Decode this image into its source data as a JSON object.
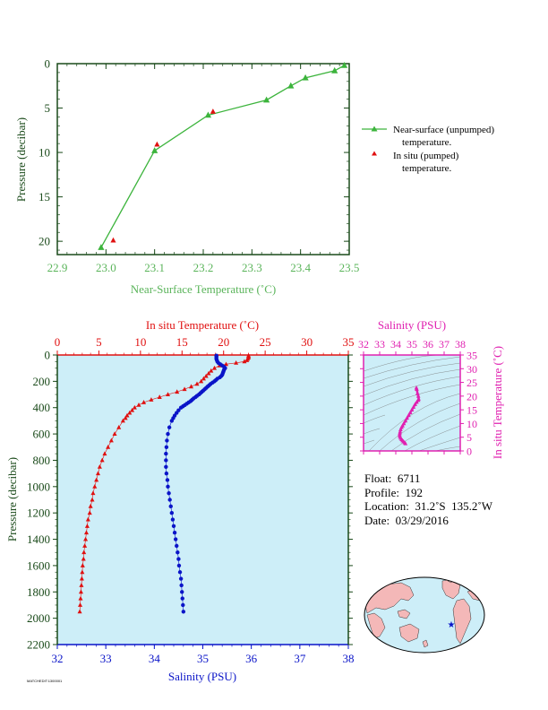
{
  "colors": {
    "green": "#3cb43c",
    "green_text": "#5ab45a",
    "red": "#e01010",
    "blue": "#0a14c8",
    "magenta": "#e020b0",
    "axis_dark": "#1a4a1a",
    "panel_bg": "#cdeef8",
    "land": "#f4b8b8"
  },
  "info": {
    "float": "Float:  6711",
    "profile": "Profile:  192",
    "location": "Location:  31.2˚S  135.2˚W",
    "date": "Date:  03/29/2016"
  },
  "footer": "MATCHEDIT:1300001",
  "chart_data": [
    {
      "type": "line",
      "xlabel": "Near-Surface Temperature (˚C)",
      "ylabel": "Pressure (decibar)",
      "xlim": [
        22.9,
        23.5
      ],
      "ylim": [
        0,
        21.5
      ],
      "xticks": [
        "22.9",
        "23.0",
        "23.1",
        "23.2",
        "23.3",
        "23.4",
        "23.5"
      ],
      "yticks": [
        "0",
        "5",
        "10",
        "15",
        "20"
      ],
      "legend_placement": "right",
      "series": [
        {
          "name": "Near-surface (unpumped) temperature.",
          "legend_lines": [
            "Near-surface (unpumped)",
            "temperature."
          ],
          "x": [
            23.49,
            23.47,
            23.41,
            23.38,
            23.33,
            23.21,
            23.1,
            22.99
          ],
          "y": [
            0.2,
            0.8,
            1.6,
            2.5,
            4.1,
            5.8,
            9.8,
            20.7
          ]
        },
        {
          "name": "In situ (pumped) temperature.",
          "legend_lines": [
            "In situ (pumped)",
            "temperature."
          ],
          "x": [
            23.22,
            23.105,
            23.015
          ],
          "y": [
            5.4,
            9.1,
            19.9
          ]
        }
      ]
    },
    {
      "type": "scatter",
      "x_bottom_label": "Salinity (PSU)",
      "x_top_label": "In situ Temperature (˚C)",
      "ylabel": "Pressure (decibar)",
      "salinity_lim": [
        32,
        38
      ],
      "temperature_lim": [
        0,
        35
      ],
      "ylim": [
        0,
        2200
      ],
      "salinity_ticks": [
        "32",
        "33",
        "34",
        "35",
        "36",
        "37",
        "38"
      ],
      "temperature_ticks": [
        "0",
        "5",
        "10",
        "15",
        "20",
        "25",
        "30",
        "35"
      ],
      "pressure_ticks": [
        "0",
        "200",
        "400",
        "600",
        "800",
        "1000",
        "1200",
        "1400",
        "1600",
        "1800",
        "2000",
        "2200"
      ],
      "series": [
        {
          "name": "In situ Temperature (˚C)",
          "p": [
            5,
            10,
            20,
            30,
            40,
            50,
            60,
            70,
            80,
            100,
            120,
            140,
            160,
            180,
            200,
            220,
            240,
            260,
            280,
            300,
            320,
            340,
            360,
            380,
            400,
            420,
            440,
            460,
            480,
            500,
            550,
            600,
            650,
            700,
            750,
            800,
            850,
            900,
            950,
            1000,
            1050,
            1100,
            1150,
            1200,
            1250,
            1300,
            1350,
            1400,
            1450,
            1500,
            1550,
            1600,
            1650,
            1700,
            1750,
            1800,
            1850,
            1900,
            1950
          ],
          "t": [
            23.0,
            23.0,
            23.0,
            22.9,
            22.8,
            22.5,
            21.5,
            20.3,
            19.5,
            18.9,
            18.5,
            18.2,
            17.9,
            17.6,
            17.3,
            16.8,
            16.1,
            15.3,
            14.4,
            13.3,
            12.3,
            11.3,
            10.4,
            9.8,
            9.3,
            9.0,
            8.7,
            8.4,
            8.2,
            7.9,
            7.4,
            6.9,
            6.5,
            6.1,
            5.7,
            5.4,
            5.1,
            4.9,
            4.7,
            4.5,
            4.3,
            4.2,
            4.0,
            3.9,
            3.7,
            3.6,
            3.5,
            3.4,
            3.3,
            3.2,
            3.15,
            3.05,
            3.0,
            2.95,
            2.9,
            2.85,
            2.8,
            2.75,
            2.7
          ]
        },
        {
          "name": "Salinity (PSU)",
          "p": [
            5,
            10,
            20,
            30,
            40,
            50,
            60,
            70,
            80,
            90,
            100,
            110,
            120,
            130,
            140,
            150,
            160,
            170,
            180,
            190,
            200,
            210,
            220,
            230,
            240,
            250,
            260,
            270,
            280,
            290,
            300,
            310,
            320,
            330,
            340,
            350,
            360,
            370,
            380,
            390,
            400,
            420,
            440,
            460,
            480,
            500,
            550,
            600,
            650,
            700,
            750,
            800,
            850,
            900,
            950,
            1000,
            1050,
            1100,
            1150,
            1200,
            1250,
            1300,
            1350,
            1400,
            1450,
            1500,
            1550,
            1600,
            1650,
            1700,
            1750,
            1800,
            1850,
            1900,
            1950
          ],
          "s": [
            35.28,
            35.28,
            35.28,
            35.28,
            35.29,
            35.3,
            35.32,
            35.36,
            35.4,
            35.44,
            35.46,
            35.44,
            35.43,
            35.42,
            35.41,
            35.4,
            35.38,
            35.35,
            35.3,
            35.27,
            35.24,
            35.2,
            35.16,
            35.13,
            35.1,
            35.07,
            35.04,
            35.01,
            34.98,
            34.95,
            34.92,
            34.88,
            34.85,
            34.81,
            34.78,
            34.75,
            34.71,
            34.67,
            34.63,
            34.59,
            34.55,
            34.5,
            34.46,
            34.42,
            34.39,
            34.36,
            34.31,
            34.28,
            34.26,
            34.25,
            34.24,
            34.24,
            34.24,
            34.25,
            34.27,
            34.28,
            34.3,
            34.32,
            34.34,
            34.36,
            34.38,
            34.4,
            34.42,
            34.44,
            34.46,
            34.48,
            34.5,
            34.51,
            34.53,
            34.55,
            34.56,
            34.57,
            34.58,
            34.59,
            34.6
          ]
        }
      ]
    },
    {
      "type": "scatter",
      "x_top_label": "Salinity (PSU)",
      "y_right_label": "In situ Temperature (˚C)",
      "xlim": [
        32,
        38
      ],
      "ylim": [
        0,
        35
      ],
      "xticks": [
        "32",
        "33",
        "34",
        "35",
        "36",
        "37",
        "38"
      ],
      "yticks": [
        "0",
        "5",
        "10",
        "15",
        "20",
        "25",
        "30",
        "35"
      ],
      "series": [
        {
          "name": "T-S",
          "s": [
            35.28,
            35.3,
            35.35,
            35.4,
            35.42,
            35.4,
            35.3,
            35.2,
            35.1,
            35.0,
            34.9,
            34.8,
            34.7,
            34.6,
            34.5,
            34.42,
            34.36,
            34.3,
            34.27,
            34.25,
            34.24,
            34.26,
            34.3,
            34.36,
            34.42,
            34.48,
            34.55,
            34.6
          ],
          "t": [
            23.0,
            22.5,
            21.0,
            20.0,
            19.0,
            18.5,
            17.8,
            17.0,
            16.0,
            15.0,
            14.0,
            13.0,
            12.0,
            11.0,
            10.0,
            9.2,
            8.6,
            7.8,
            7.0,
            6.4,
            5.8,
            5.2,
            4.7,
            4.2,
            3.8,
            3.4,
            3.0,
            2.7
          ]
        }
      ]
    }
  ]
}
